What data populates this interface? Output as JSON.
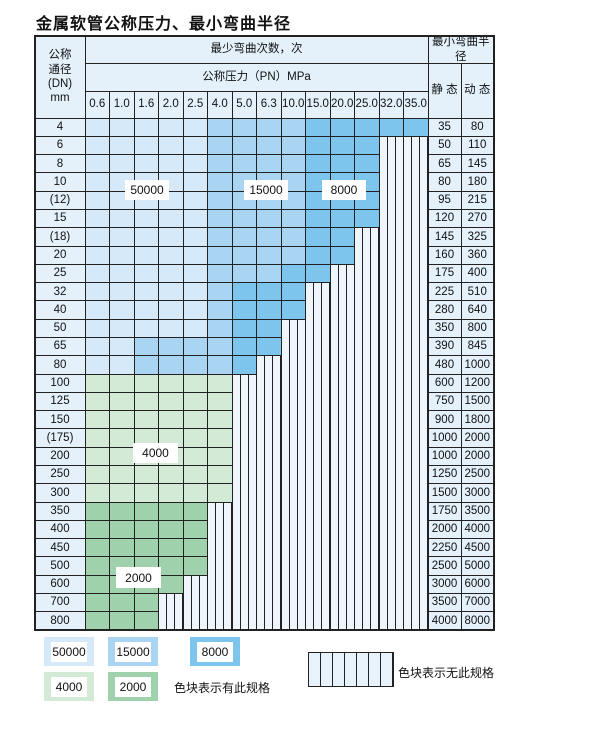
{
  "title": "金属软管公称压力、最小弯曲半径",
  "header": {
    "dn_label": "公称\n通径\n(DN)\nmm",
    "cycles_label": "最少弯曲次数，次",
    "pressure_label": "公称压力（PN）MPa",
    "radius_label": "最小弯曲半径",
    "static_label": "静 态",
    "dynamic_label": "动 态",
    "pressures": [
      "0.6",
      "1.0",
      "1.6",
      "2.0",
      "2.5",
      "4.0",
      "5.0",
      "6.3",
      "10.0",
      "15.0",
      "20.0",
      "25.0",
      "32.0",
      "35.0"
    ]
  },
  "colors": {
    "L": "#d5e9f8",
    "M": "#a9d5f2",
    "D": "#7ec5ee",
    "G": "#d3ead7",
    "H": "#9fd2ac",
    "X": "hatch"
  },
  "rows": [
    {
      "dn": "4",
      "s": "35",
      "d": "80",
      "cells": "LLLLLMMMMDDDDD"
    },
    {
      "dn": "6",
      "s": "50",
      "d": "110",
      "cells": "LLLLLMMMMDDDXX"
    },
    {
      "dn": "8",
      "s": "65",
      "d": "145",
      "cells": "LLLLLMMMMDDDXX"
    },
    {
      "dn": "10",
      "s": "80",
      "d": "180",
      "cells": "LLLLLMMMMDDDXX"
    },
    {
      "dn": "(12)",
      "s": "95",
      "d": "215",
      "cells": "LLLLLMMMMDDDXX"
    },
    {
      "dn": "15",
      "s": "120",
      "d": "270",
      "cells": "LLLLLMMMMDDDXX"
    },
    {
      "dn": "(18)",
      "s": "145",
      "d": "325",
      "cells": "LLLLLMMMMDDXXX"
    },
    {
      "dn": "20",
      "s": "160",
      "d": "360",
      "cells": "LLLLLMMMMDDXXX"
    },
    {
      "dn": "25",
      "s": "175",
      "d": "400",
      "cells": "LLLLLMMMDDXXXX"
    },
    {
      "dn": "32",
      "s": "225",
      "d": "510",
      "cells": "LLLLLMDDDXXXXX"
    },
    {
      "dn": "40",
      "s": "280",
      "d": "640",
      "cells": "LLLLLMDDDXXXXX"
    },
    {
      "dn": "50",
      "s": "350",
      "d": "800",
      "cells": "LLLLLMDDXXXXXX"
    },
    {
      "dn": "65",
      "s": "390",
      "d": "845",
      "cells": "LLMMMMDDXXXXXX"
    },
    {
      "dn": "80",
      "s": "480",
      "d": "1000",
      "cells": "LLMMMMDXXXXXXX"
    },
    {
      "dn": "100",
      "s": "600",
      "d": "1200",
      "cells": "GGGGGGXXXXXXXX"
    },
    {
      "dn": "125",
      "s": "750",
      "d": "1500",
      "cells": "GGGGGGXXXXXXXX"
    },
    {
      "dn": "150",
      "s": "900",
      "d": "1800",
      "cells": "GGGGGGXXXXXXXX"
    },
    {
      "dn": "(175)",
      "s": "1000",
      "d": "2000",
      "cells": "GGGGGGXXXXXXXX"
    },
    {
      "dn": "200",
      "s": "1000",
      "d": "2000",
      "cells": "GGGGGGXXXXXXXX"
    },
    {
      "dn": "250",
      "s": "1250",
      "d": "2500",
      "cells": "GGGGGGXXXXXXXX"
    },
    {
      "dn": "300",
      "s": "1500",
      "d": "3000",
      "cells": "GGGGGGXXXXXXXX"
    },
    {
      "dn": "350",
      "s": "1750",
      "d": "3500",
      "cells": "HHHHHXXXXXXXXX"
    },
    {
      "dn": "400",
      "s": "2000",
      "d": "4000",
      "cells": "HHHHHXXXXXXXXX"
    },
    {
      "dn": "450",
      "s": "2250",
      "d": "4500",
      "cells": "HHHHHXXXXXXXXX"
    },
    {
      "dn": "500",
      "s": "2500",
      "d": "5000",
      "cells": "HHHHHXXXXXXXXX"
    },
    {
      "dn": "600",
      "s": "3000",
      "d": "6000",
      "cells": "HHHHXXXXXXXXXX"
    },
    {
      "dn": "700",
      "s": "3500",
      "d": "7000",
      "cells": "HHHXXXXXXXXXXX"
    },
    {
      "dn": "800",
      "s": "4000",
      "d": "8000",
      "cells": "HHHXXXXXXXXXXX"
    }
  ],
  "region_labels": {
    "l50000": "50000",
    "l15000": "15000",
    "l8000": "8000",
    "l4000": "4000",
    "l2000": "2000"
  },
  "legend": {
    "items": [
      {
        "label": "50000",
        "color": "L"
      },
      {
        "label": "15000",
        "color": "M"
      },
      {
        "label": "8000",
        "color": "D"
      },
      {
        "label": "4000",
        "color": "G"
      },
      {
        "label": "2000",
        "color": "H"
      }
    ],
    "available_text": "色块表示有此规格",
    "unavailable_text": "色块表示无此规格"
  }
}
